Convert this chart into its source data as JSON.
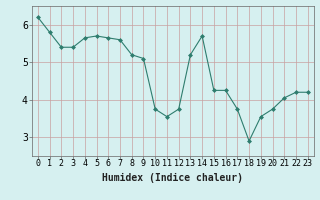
{
  "x": [
    0,
    1,
    2,
    3,
    4,
    5,
    6,
    7,
    8,
    9,
    10,
    11,
    12,
    13,
    14,
    15,
    16,
    17,
    18,
    19,
    20,
    21,
    22,
    23
  ],
  "y": [
    6.2,
    5.8,
    5.4,
    5.4,
    5.65,
    5.7,
    5.65,
    5.6,
    5.2,
    5.1,
    3.75,
    3.55,
    3.75,
    5.2,
    5.7,
    4.25,
    4.25,
    3.75,
    2.9,
    3.55,
    3.75,
    4.05,
    4.2,
    4.2
  ],
  "line_color": "#2e7d6e",
  "marker": "D",
  "marker_size": 2,
  "bg_color": "#d6f0f0",
  "grid_color": "#c8a0a0",
  "xlabel": "Humidex (Indice chaleur)",
  "ylim": [
    2.5,
    6.5
  ],
  "xlim": [
    -0.5,
    23.5
  ],
  "yticks": [
    3,
    4,
    5,
    6
  ],
  "xticks": [
    0,
    1,
    2,
    3,
    4,
    5,
    6,
    7,
    8,
    9,
    10,
    11,
    12,
    13,
    14,
    15,
    16,
    17,
    18,
    19,
    20,
    21,
    22,
    23
  ],
  "xlabel_fontsize": 7,
  "tick_fontsize": 6
}
